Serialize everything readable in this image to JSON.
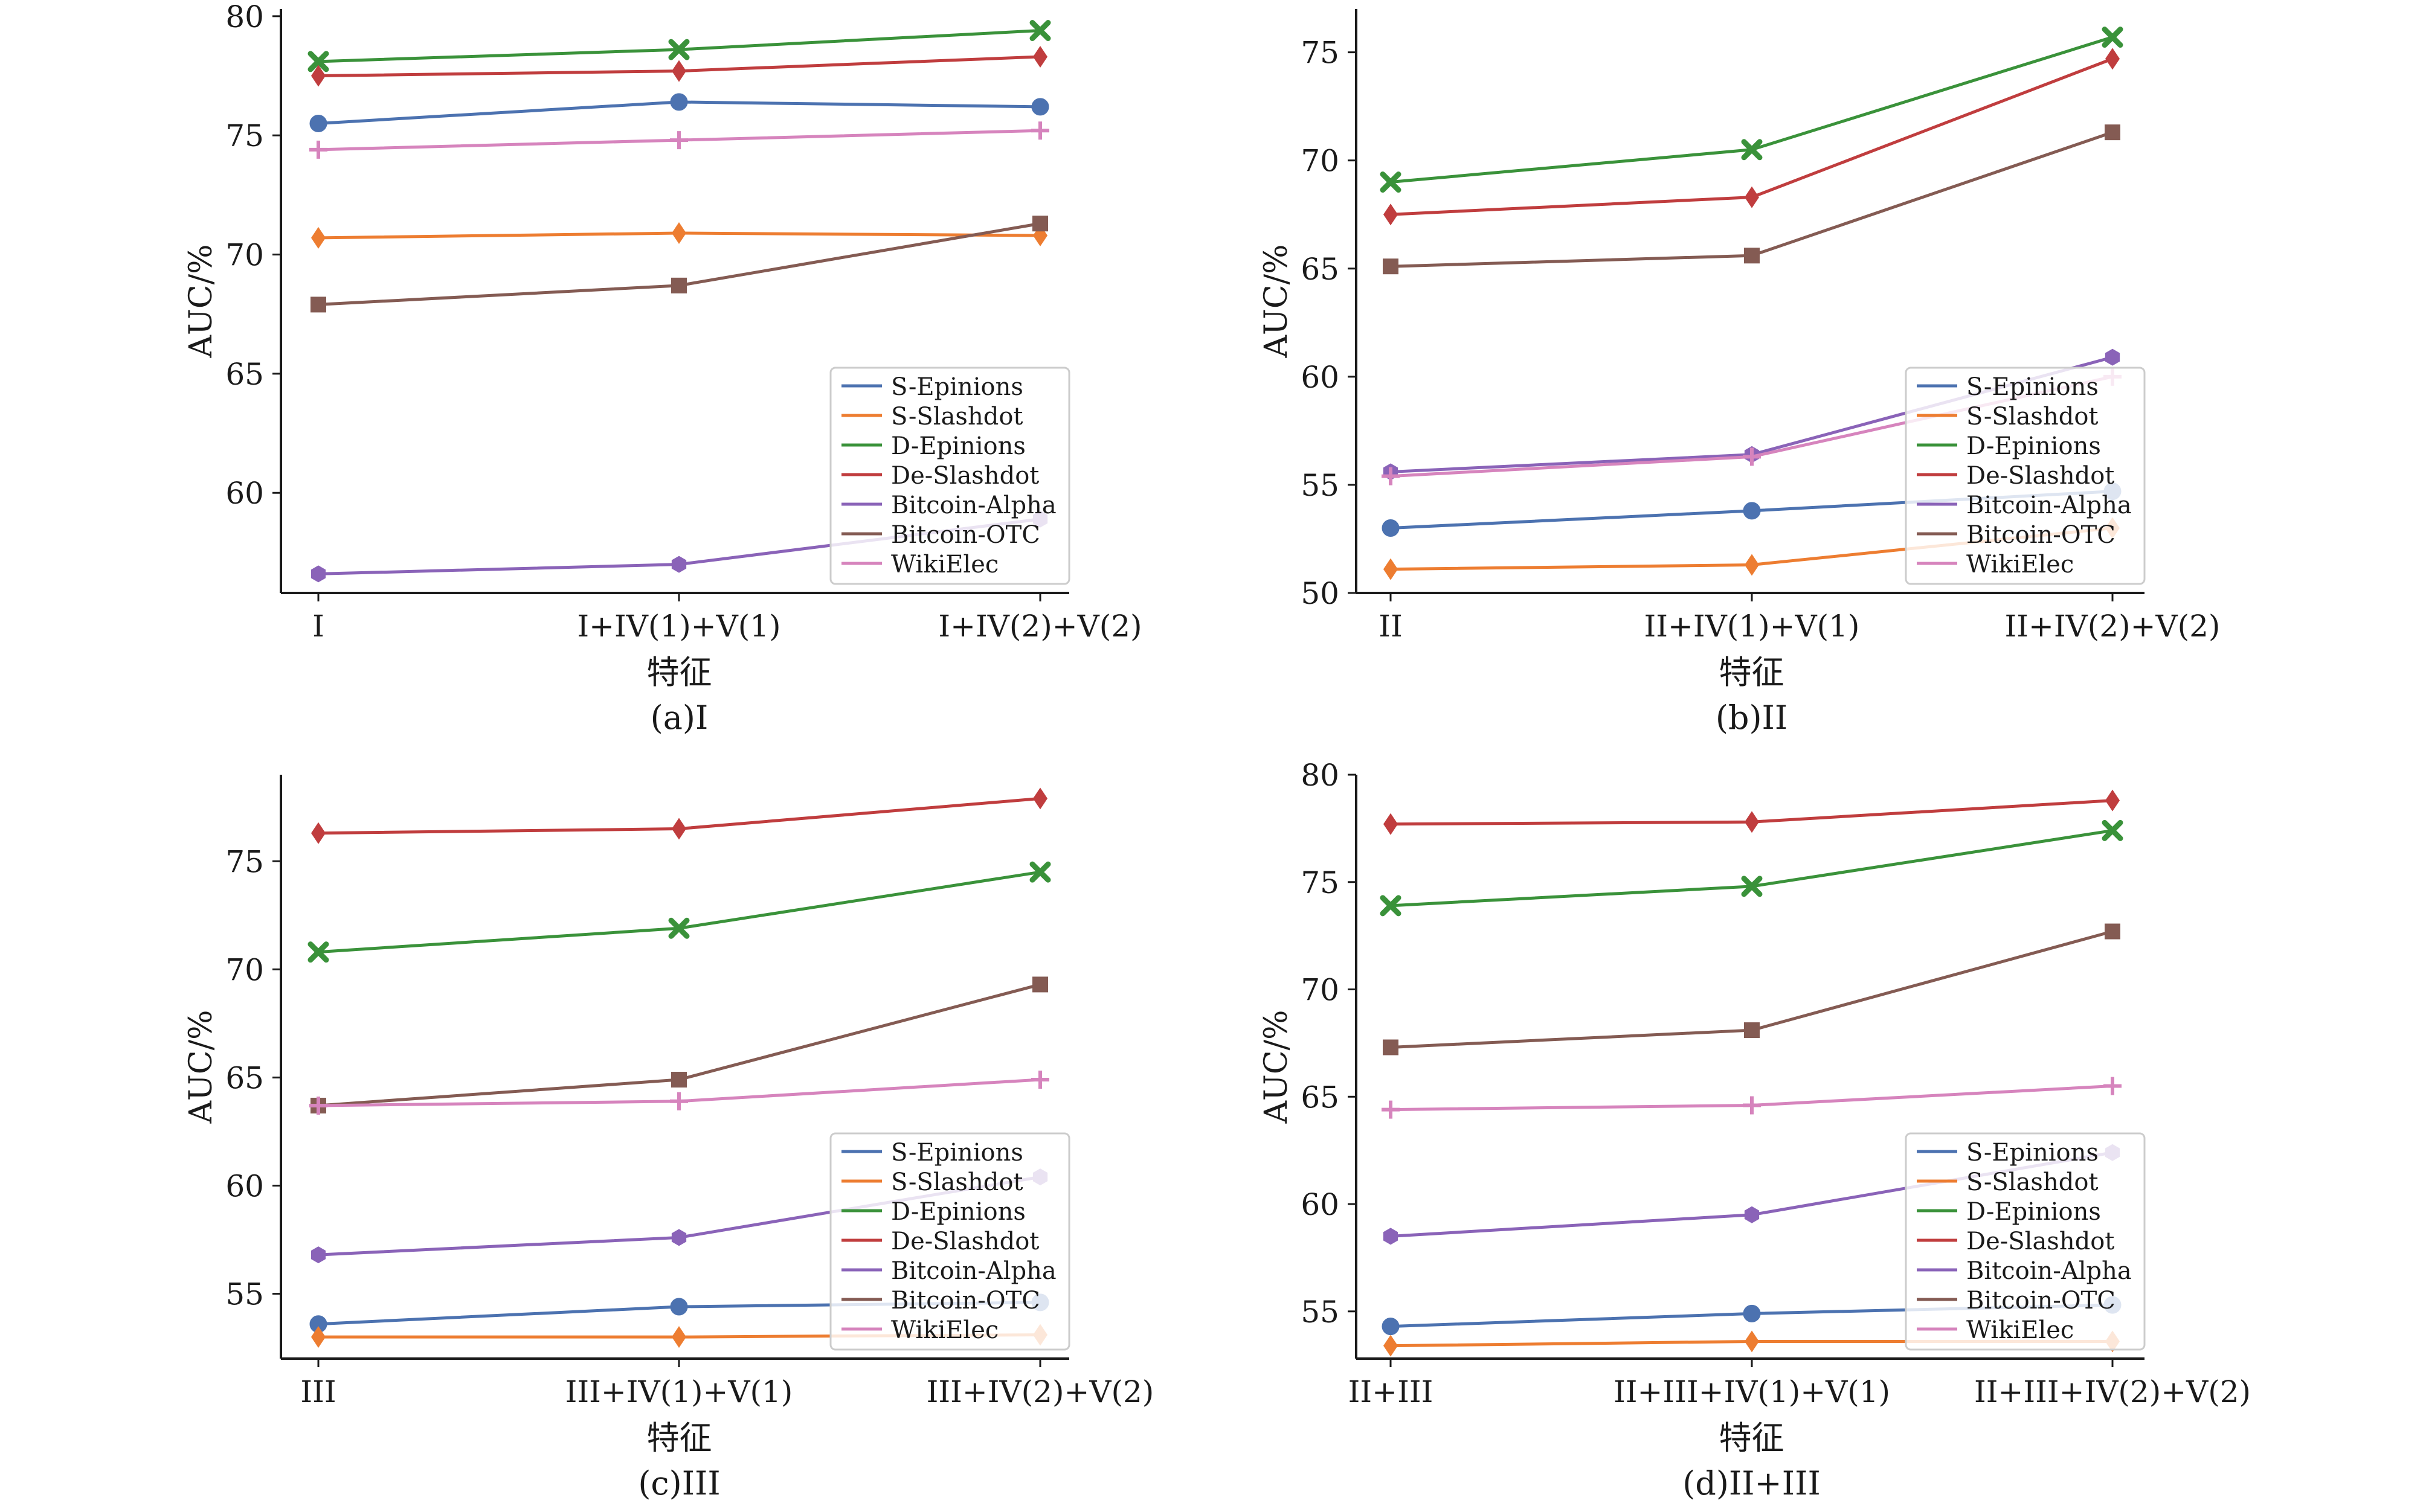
{
  "figure": {
    "series_names": [
      "S-Epinions",
      "S-Slashdot",
      "D-Epinions",
      "De-Slashdot",
      "Bitcoin-Alpha",
      "Bitcoin-OTC",
      "WikiElec"
    ],
    "series_colors": [
      "#4c72b0",
      "#ed7d31",
      "#3a923a",
      "#c03d3e",
      "#8a63b8",
      "#845b53",
      "#d684bd"
    ],
    "series_markers": [
      "circle",
      "diamond",
      "x",
      "diamond",
      "hexagon",
      "square",
      "plus"
    ]
  },
  "chart_data": [
    {
      "type": "line",
      "caption": "(a)I",
      "xlabel": "特征",
      "ylabel": "AUC/%",
      "categories": [
        "I",
        "I+IV(1)+V(1)",
        "I+IV(2)+V(2)"
      ],
      "y_ticks": [
        60,
        65,
        70,
        75,
        80
      ],
      "ylim": [
        55.8,
        80.3
      ],
      "legend_position": "lower-right",
      "series": [
        {
          "name": "S-Epinions",
          "values": [
            75.5,
            76.4,
            76.2
          ]
        },
        {
          "name": "S-Slashdot",
          "values": [
            70.7,
            70.9,
            70.8
          ]
        },
        {
          "name": "D-Epinions",
          "values": [
            78.1,
            78.6,
            79.4
          ]
        },
        {
          "name": "De-Slashdot",
          "values": [
            77.5,
            77.7,
            78.3
          ]
        },
        {
          "name": "Bitcoin-Alpha",
          "values": [
            56.6,
            57.0,
            58.9
          ]
        },
        {
          "name": "Bitcoin-OTC",
          "values": [
            67.9,
            68.7,
            71.3
          ]
        },
        {
          "name": "WikiElec",
          "values": [
            74.4,
            74.8,
            75.2
          ]
        }
      ]
    },
    {
      "type": "line",
      "caption": "(b)II",
      "xlabel": "特征",
      "ylabel": "AUC/%",
      "categories": [
        "II",
        "II+IV(1)+V(1)",
        "II+IV(2)+V(2)"
      ],
      "y_ticks": [
        50,
        55,
        60,
        65,
        70,
        75
      ],
      "ylim": [
        50,
        77
      ],
      "legend_position": "lower-right",
      "series": [
        {
          "name": "S-Epinions",
          "values": [
            53.0,
            53.8,
            54.7
          ]
        },
        {
          "name": "S-Slashdot",
          "values": [
            51.1,
            51.3,
            53.0
          ]
        },
        {
          "name": "D-Epinions",
          "values": [
            69.0,
            70.5,
            75.7
          ]
        },
        {
          "name": "De-Slashdot",
          "values": [
            67.5,
            68.3,
            74.7
          ]
        },
        {
          "name": "Bitcoin-Alpha",
          "values": [
            55.6,
            56.4,
            60.9
          ]
        },
        {
          "name": "Bitcoin-OTC",
          "values": [
            65.1,
            65.6,
            71.3
          ]
        },
        {
          "name": "WikiElec",
          "values": [
            55.4,
            56.3,
            60.0
          ]
        }
      ]
    },
    {
      "type": "line",
      "caption": "(c)III",
      "xlabel": "特征",
      "ylabel": "AUC/%",
      "categories": [
        "III",
        "III+IV(1)+V(1)",
        "III+IV(2)+V(2)"
      ],
      "y_ticks": [
        55,
        60,
        65,
        70,
        75
      ],
      "ylim": [
        52.0,
        79.0
      ],
      "legend_position": "lower-right",
      "series": [
        {
          "name": "S-Epinions",
          "values": [
            53.6,
            54.4,
            54.6
          ]
        },
        {
          "name": "S-Slashdot",
          "values": [
            53.0,
            53.0,
            53.1
          ]
        },
        {
          "name": "D-Epinions",
          "values": [
            70.8,
            71.9,
            74.5
          ]
        },
        {
          "name": "De-Slashdot",
          "values": [
            76.3,
            76.5,
            77.9
          ]
        },
        {
          "name": "Bitcoin-Alpha",
          "values": [
            56.8,
            57.6,
            60.4
          ]
        },
        {
          "name": "Bitcoin-OTC",
          "values": [
            63.7,
            64.9,
            69.3
          ]
        },
        {
          "name": "WikiElec",
          "values": [
            63.7,
            63.9,
            64.9
          ]
        }
      ]
    },
    {
      "type": "line",
      "caption": "(d)II+III",
      "xlabel": "特征",
      "ylabel": "AUC/%",
      "categories": [
        "II+III",
        "II+III+IV(1)+V(1)",
        "II+III+IV(2)+V(2)"
      ],
      "y_ticks": [
        55,
        60,
        65,
        70,
        75,
        80
      ],
      "ylim": [
        52.8,
        80.0
      ],
      "legend_position": "lower-right",
      "series": [
        {
          "name": "S-Epinions",
          "values": [
            54.3,
            54.9,
            55.3
          ]
        },
        {
          "name": "S-Slashdot",
          "values": [
            53.4,
            53.6,
            53.6
          ]
        },
        {
          "name": "D-Epinions",
          "values": [
            73.9,
            74.8,
            77.4
          ]
        },
        {
          "name": "De-Slashdot",
          "values": [
            77.7,
            77.8,
            78.8
          ]
        },
        {
          "name": "Bitcoin-Alpha",
          "values": [
            58.5,
            59.5,
            62.4
          ]
        },
        {
          "name": "Bitcoin-OTC",
          "values": [
            67.3,
            68.1,
            72.7
          ]
        },
        {
          "name": "WikiElec",
          "values": [
            64.4,
            64.6,
            65.5
          ]
        }
      ]
    }
  ]
}
